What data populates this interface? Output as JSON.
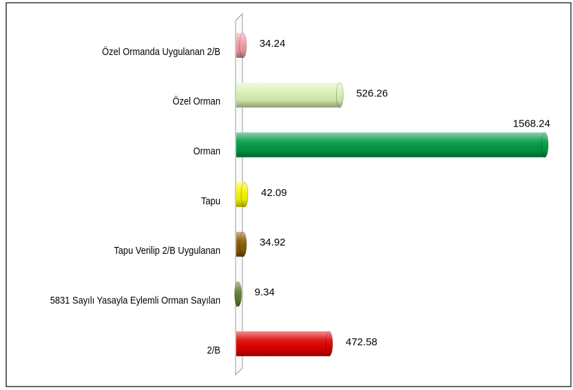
{
  "chart_data": {
    "type": "bar",
    "orientation": "horizontal",
    "categories": [
      "Özel Ormanda Uygulanan 2/B",
      "Özel Orman",
      "Orman",
      "Tapu",
      "Tapu Verilip 2/B Uygulanan",
      "5831 Sayılı Yasayla Eylemli Orman Sayılan",
      "2/B"
    ],
    "values": [
      34.24,
      526.26,
      1568.24,
      42.09,
      34.92,
      9.34,
      472.58
    ],
    "colors": [
      "#f29ba3",
      "#d9f2b3",
      "#009a44",
      "#f5f500",
      "#8a5a00",
      "#5f7f2c",
      "#e00000"
    ]
  }
}
